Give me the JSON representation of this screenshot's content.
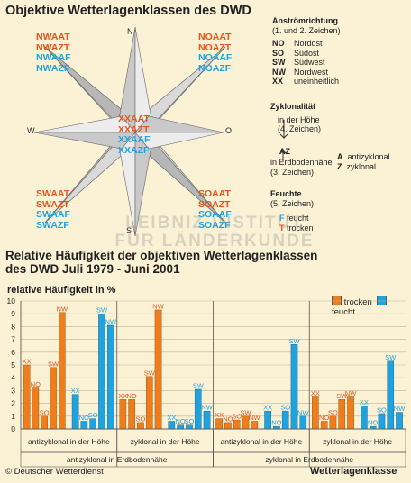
{
  "title_top": "Objektive Wetterlagenklassen des DWD",
  "compass": {
    "n": "N",
    "s": "S",
    "w": "W",
    "o": "O",
    "nw_codes": [
      "NWAAT",
      "NWAZT",
      "NWAAF",
      "NWAZF"
    ],
    "no_codes": [
      "NOAAT",
      "NOAZT",
      "NOAAF",
      "NOAZF"
    ],
    "center_codes": [
      "XXAAT",
      "XXAZT",
      "XXAAF",
      "XXAZF"
    ],
    "sw_codes": [
      "SWAAT",
      "SWAZT",
      "SWAAF",
      "SWAZF"
    ],
    "so_codes": [
      "SOAAT",
      "SOAZT",
      "SOAAF",
      "SOAZF"
    ]
  },
  "legend_top": {
    "anstroem_title": "Anströmrichtung",
    "anstroem_sub": "(1. und 2. Zeichen)",
    "abbr": [
      {
        "code": "NO",
        "text": "Nordost"
      },
      {
        "code": "SO",
        "text": "Südost"
      },
      {
        "code": "SW",
        "text": "Südwest"
      },
      {
        "code": "NW",
        "text": "Nordwest"
      },
      {
        "code": "XX",
        "text": "uneinheitlich"
      }
    ],
    "zyklo_title": "Zyklonalität",
    "hoehe1": "in der Höhe",
    "hoehe2": "(4. Zeichen)",
    "az": "AZ",
    "boden1": "in Erdbodennähe",
    "boden2": "(3. Zeichen)",
    "a_code": "A",
    "a_text": "antizyklonal",
    "z_code": "Z",
    "z_text": "zyklonal",
    "feuchte_title": "Feuchte",
    "feuchte_sub": "(5. Zeichen)",
    "f_code": "F",
    "f_text": "feucht",
    "t_code": "T",
    "t_text": "trocken"
  },
  "watermark": [
    "LEIBNIZ-INSTITUT",
    "FÜR LÄNDERKUNDE"
  ],
  "title_chart": [
    "Relative Häufigkeit der objektiven Wetterlagenklassen",
    "des DWD Juli 1979 - Juni 2001"
  ],
  "chart_data": {
    "type": "bar",
    "ylabel": "relative Häufigkeit in %",
    "ylim": [
      0,
      10
    ],
    "yticks": [
      0,
      1,
      2,
      3,
      4,
      5,
      6,
      7,
      8,
      9,
      10
    ],
    "legend": [
      "trocken",
      "feucht"
    ],
    "colors": {
      "trocken": "#f07d1c",
      "feucht": "#1fa3e0"
    },
    "groups": [
      {
        "label": "antizyklonal in der Höhe",
        "parent": "antizyklonal in Erdbodennähe",
        "trocken": [
          {
            "dir": "XX",
            "value": 5.0
          },
          {
            "dir": "NO",
            "value": 3.2
          },
          {
            "dir": "SO",
            "value": 1.0
          },
          {
            "dir": "SW",
            "value": 4.8
          },
          {
            "dir": "NW",
            "value": 9.1
          }
        ],
        "feucht": [
          {
            "dir": "XX",
            "value": 2.7
          },
          {
            "dir": "NO",
            "value": 0.6
          },
          {
            "dir": "SO",
            "value": 0.8
          },
          {
            "dir": "SW",
            "value": 9.0
          },
          {
            "dir": "NW",
            "value": 8.1
          }
        ]
      },
      {
        "label": "zyklonal in der Höhe",
        "parent": "antizyklonal in Erdbodennähe",
        "trocken": [
          {
            "dir": "XX",
            "value": 2.3
          },
          {
            "dir": "NO",
            "value": 2.3
          },
          {
            "dir": "SO",
            "value": 0.5
          },
          {
            "dir": "SW",
            "value": 4.1
          },
          {
            "dir": "NW",
            "value": 9.3
          }
        ],
        "feucht": [
          {
            "dir": "XX",
            "value": 0.6
          },
          {
            "dir": "NO",
            "value": 0.3
          },
          {
            "dir": "SO",
            "value": 0.3
          },
          {
            "dir": "SW",
            "value": 3.1
          },
          {
            "dir": "NW",
            "value": 1.4
          }
        ]
      },
      {
        "label": "antizyklonal in der Höhe",
        "parent": "zyklonal in Erdbodennähe",
        "trocken": [
          {
            "dir": "XX",
            "value": 0.8
          },
          {
            "dir": "NO",
            "value": 0.5
          },
          {
            "dir": "SO",
            "value": 0.7
          },
          {
            "dir": "SW",
            "value": 1.0
          },
          {
            "dir": "NW",
            "value": 0.6
          }
        ],
        "feucht": [
          {
            "dir": "XX",
            "value": 1.4
          },
          {
            "dir": "NO",
            "value": 0.2
          },
          {
            "dir": "SO",
            "value": 1.4
          },
          {
            "dir": "SW",
            "value": 6.6
          },
          {
            "dir": "NW",
            "value": 1.0
          }
        ]
      },
      {
        "label": "zyklonal in der Höhe",
        "parent": "zyklonal in Erdbodennähe",
        "trocken": [
          {
            "dir": "XX",
            "value": 2.5
          },
          {
            "dir": "NO",
            "value": 0.6
          },
          {
            "dir": "SO",
            "value": 1.0
          },
          {
            "dir": "SW",
            "value": 2.3
          },
          {
            "dir": "NW",
            "value": 2.5
          }
        ],
        "feucht": [
          {
            "dir": "XX",
            "value": 1.8
          },
          {
            "dir": "NO",
            "value": 0.2
          },
          {
            "dir": "SO",
            "value": 1.2
          },
          {
            "dir": "SW",
            "value": 5.3
          },
          {
            "dir": "NW",
            "value": 1.3
          }
        ]
      }
    ],
    "parents": [
      "antizyklonal in Erdbodennähe",
      "zyklonal in Erdbodennähe"
    ]
  },
  "footer": {
    "source": "© Deutscher Wetterdienst",
    "brand": "Wetterlagenklasse"
  }
}
